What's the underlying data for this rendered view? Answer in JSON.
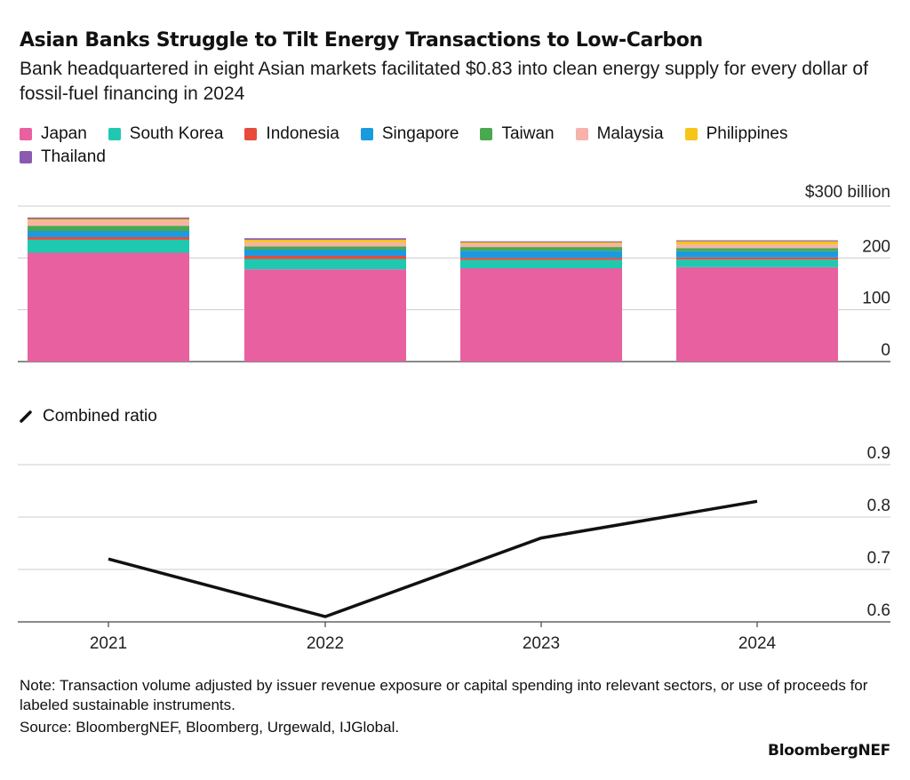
{
  "title": "Asian Banks Struggle to Tilt Energy Transactions to Low-Carbon",
  "subtitle": "Bank headquartered in eight Asian markets facilitated $0.83 into clean energy supply for every dollar of fossil-fuel financing in 2024",
  "note": "Note: Transaction volume adjusted by issuer revenue exposure or capital spending into relevant sectors, or use of proceeds for labeled sustainable instruments.",
  "source": "Source: BloombergNEF, Bloomberg, Urgewald, IJGlobal.",
  "brand": "BloombergNEF",
  "chart_data": [
    {
      "type": "bar",
      "stacked": true,
      "categories": [
        "2021",
        "2022",
        "2023",
        "2024"
      ],
      "ylim": [
        0,
        300
      ],
      "yticks": [
        0,
        100,
        200,
        300
      ],
      "ytick_labels": [
        "0",
        "100",
        "200",
        "$300 billion"
      ],
      "grid": true,
      "legend": "top-left",
      "series": [
        {
          "name": "Japan",
          "color": "#e8609f",
          "values": [
            210,
            178,
            180,
            182
          ]
        },
        {
          "name": "South Korea",
          "color": "#1fc9b0",
          "values": [
            25,
            20,
            16,
            15
          ]
        },
        {
          "name": "Indonesia",
          "color": "#e84a3c",
          "values": [
            5,
            6,
            4,
            4
          ]
        },
        {
          "name": "Singapore",
          "color": "#1a9be0",
          "values": [
            12,
            12,
            14,
            12
          ]
        },
        {
          "name": "Taiwan",
          "color": "#4aa84f",
          "values": [
            10,
            6,
            7,
            6
          ]
        },
        {
          "name": "Malaysia",
          "color": "#f7b2ab",
          "values": [
            10,
            8,
            6,
            7
          ]
        },
        {
          "name": "Philippines",
          "color": "#f5c518",
          "values": [
            3,
            5,
            3,
            6
          ]
        },
        {
          "name": "Thailand",
          "color": "#8a5ab0",
          "values": [
            3,
            3,
            2,
            2
          ]
        }
      ]
    },
    {
      "type": "line",
      "x": [
        "2021",
        "2022",
        "2023",
        "2024"
      ],
      "series": [
        {
          "name": "Combined ratio",
          "color": "#111111",
          "values": [
            0.72,
            0.61,
            0.76,
            0.83
          ]
        }
      ],
      "ylim": [
        0.6,
        0.9
      ],
      "yticks": [
        0.6,
        0.7,
        0.8,
        0.9
      ],
      "ytick_labels": [
        "0.6",
        "0.7",
        "0.8",
        "0.9"
      ],
      "grid": true
    }
  ]
}
